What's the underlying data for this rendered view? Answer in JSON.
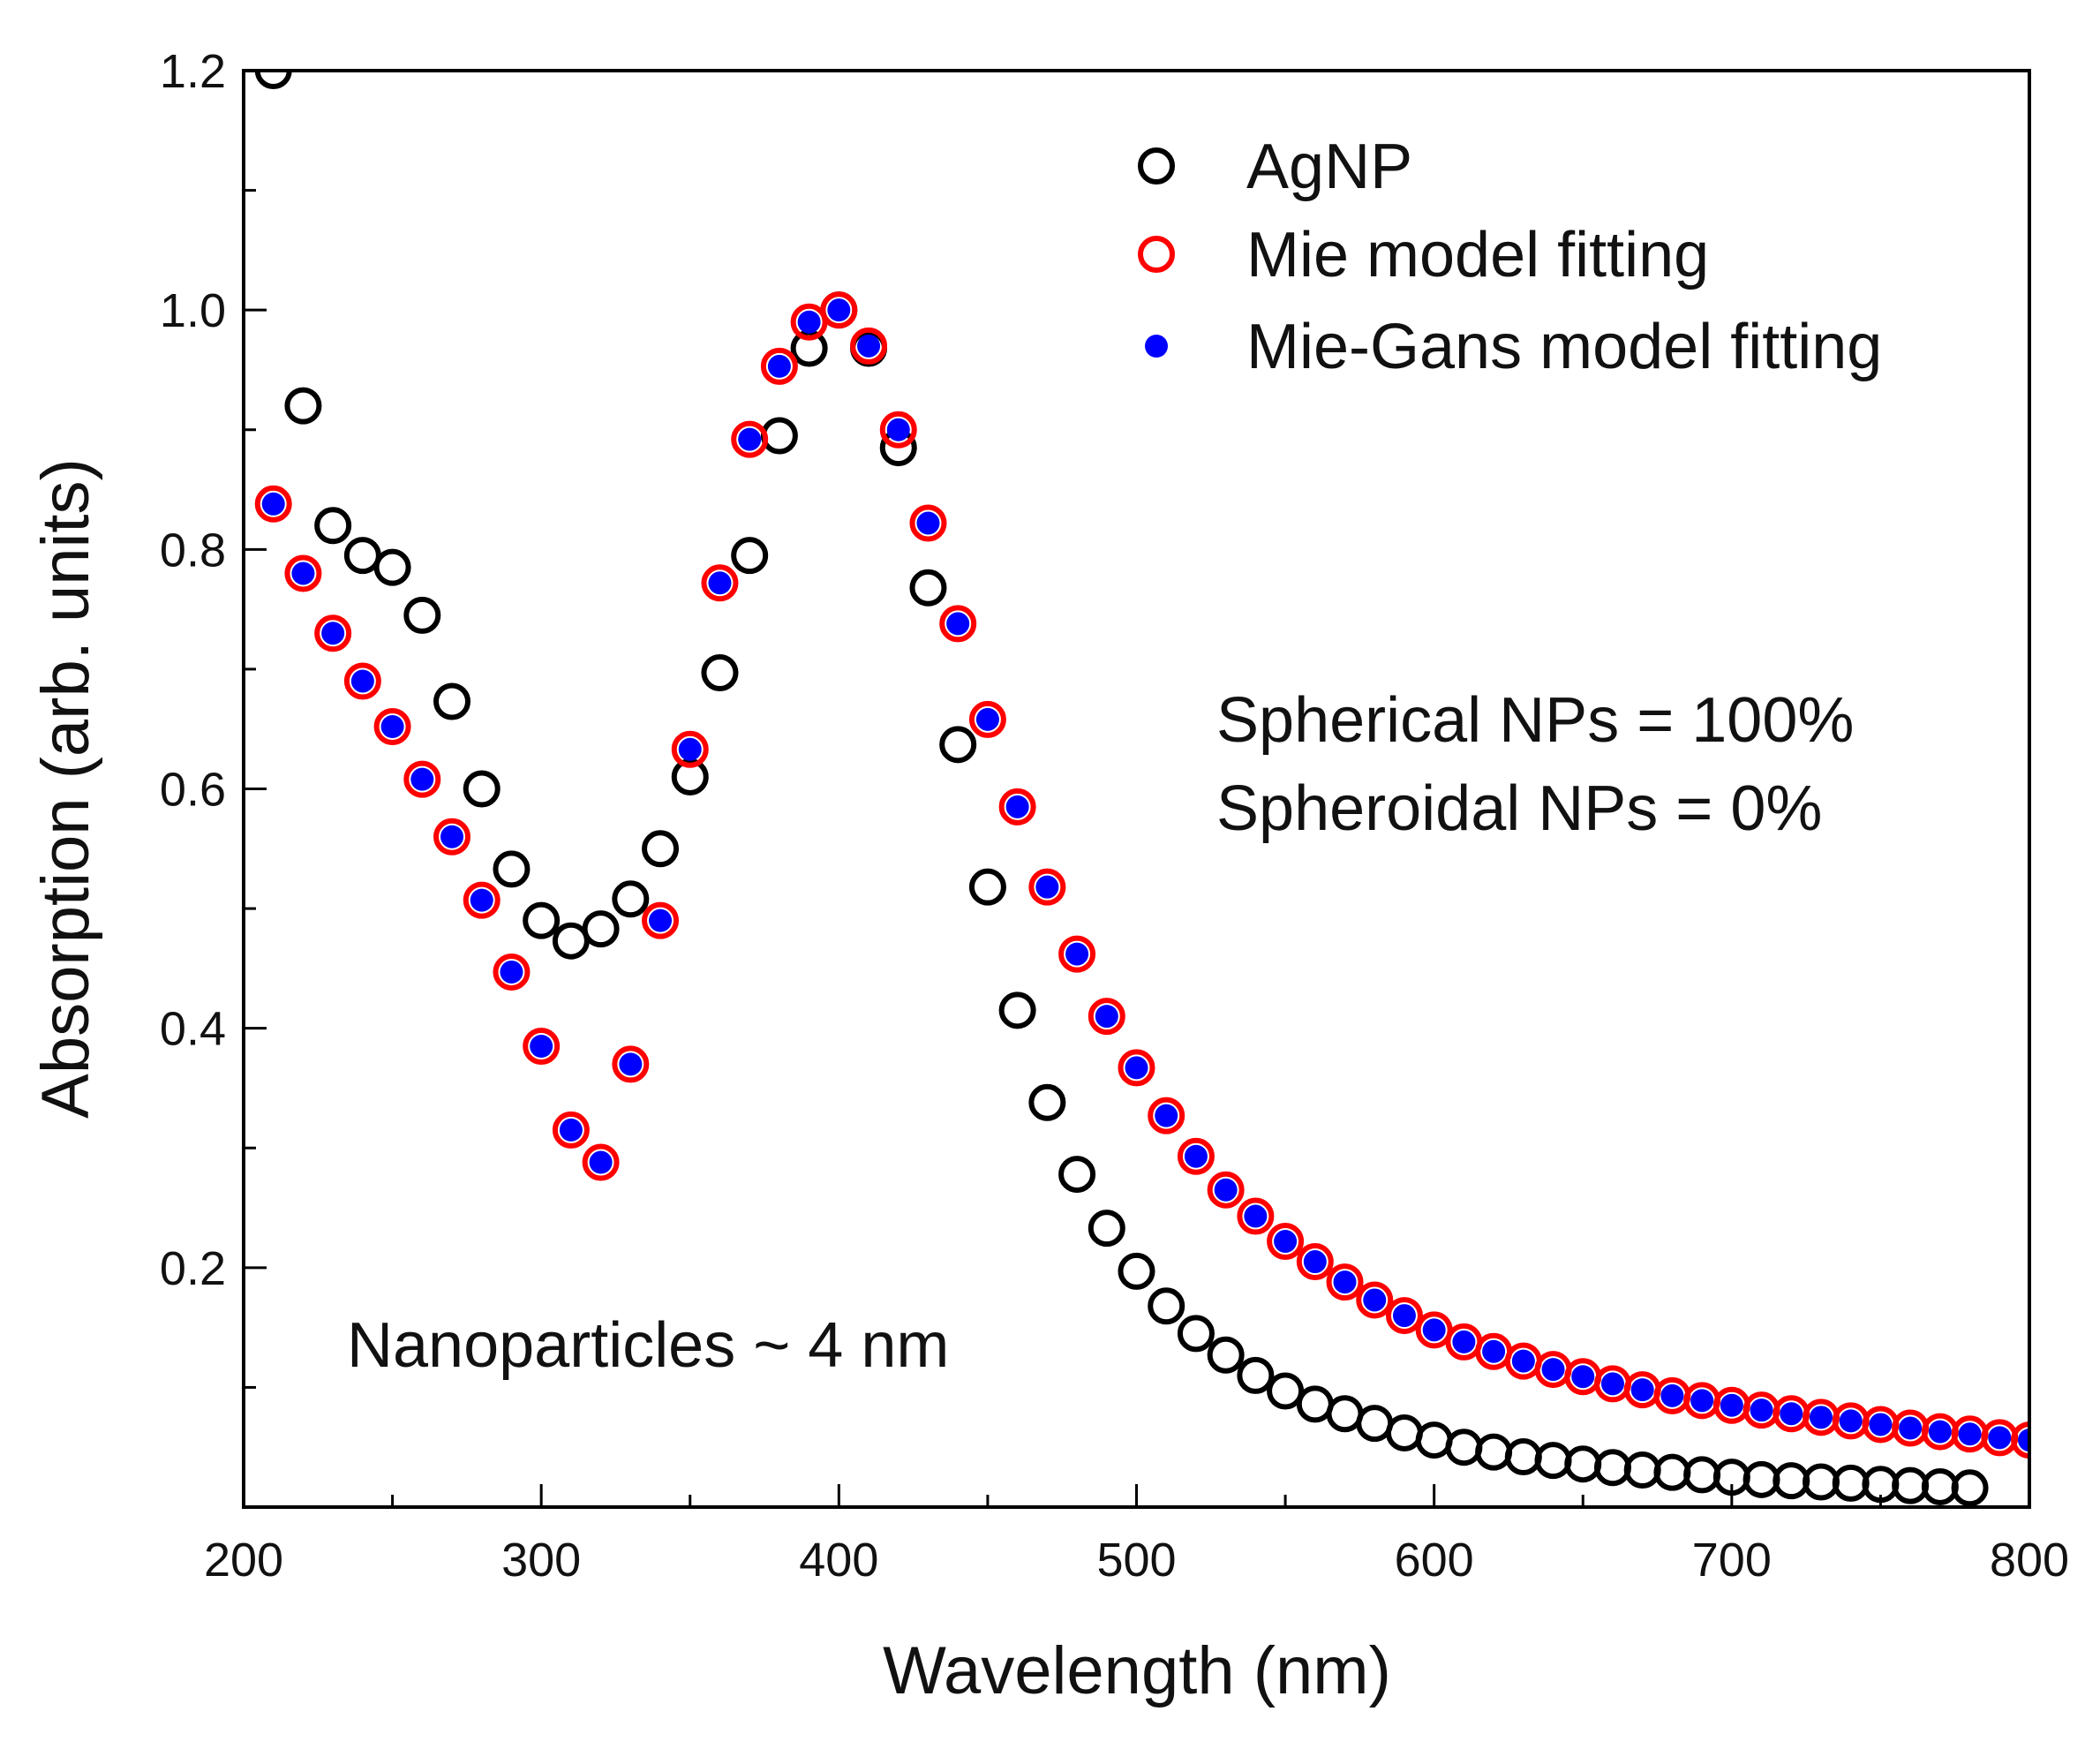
{
  "chart_data": {
    "type": "scatter",
    "title": "",
    "xlabel": "Wavelength (nm)",
    "ylabel": "Absorption (arb. units)",
    "xlim": [
      200,
      800
    ],
    "ylim": [
      0,
      1.2
    ],
    "x_ticks": [
      200,
      300,
      400,
      500,
      600,
      700,
      800
    ],
    "x_tick_labels": [
      "200",
      "300",
      "400",
      "500",
      "600",
      "700",
      "800"
    ],
    "y_ticks": [
      0.2,
      0.4,
      0.6,
      0.8,
      1.0,
      1.2
    ],
    "y_tick_labels": [
      "0.2",
      "0.4",
      "0.6",
      "0.8",
      "1.0",
      "1.2"
    ],
    "grid": false,
    "legend_position": "top-right",
    "series": [
      {
        "name": "AgNP",
        "marker": "open-circle",
        "color": "#000000",
        "x": [
          210,
          220,
          230,
          240,
          250,
          260,
          270,
          280,
          290,
          300,
          310,
          320,
          330,
          340,
          350,
          360,
          370,
          380,
          390,
          400,
          410,
          420,
          430,
          440,
          450,
          460,
          470,
          480,
          490,
          500,
          510,
          520,
          530,
          540,
          550,
          560,
          570,
          580,
          590,
          600,
          610,
          620,
          630,
          640,
          650,
          660,
          670,
          680,
          690,
          700,
          710,
          720,
          730,
          740,
          750,
          760,
          770,
          780
        ],
        "y": [
          1.2,
          0.92,
          0.82,
          0.795,
          0.785,
          0.745,
          0.673,
          0.6,
          0.533,
          0.49,
          0.473,
          0.483,
          0.508,
          0.55,
          0.61,
          0.697,
          0.795,
          0.895,
          0.968,
          1.0,
          0.968,
          0.885,
          0.768,
          0.637,
          0.518,
          0.415,
          0.338,
          0.278,
          0.233,
          0.197,
          0.168,
          0.145,
          0.127,
          0.11,
          0.097,
          0.086,
          0.078,
          0.07,
          0.062,
          0.056,
          0.05,
          0.046,
          0.042,
          0.039,
          0.036,
          0.033,
          0.031,
          0.029,
          0.027,
          0.025,
          0.023,
          0.022,
          0.021,
          0.02,
          0.019,
          0.018,
          0.017,
          0.016
        ]
      },
      {
        "name": "Mie model fitting",
        "marker": "open-circle",
        "color": "#ff0000",
        "x": [
          210,
          220,
          230,
          240,
          250,
          260,
          270,
          280,
          290,
          300,
          310,
          320,
          330,
          340,
          350,
          360,
          370,
          380,
          390,
          400,
          410,
          420,
          430,
          440,
          450,
          460,
          470,
          480,
          490,
          500,
          510,
          520,
          530,
          540,
          550,
          560,
          570,
          580,
          590,
          600,
          610,
          620,
          630,
          640,
          650,
          660,
          670,
          680,
          690,
          700,
          710,
          720,
          730,
          740,
          750,
          760,
          770,
          780,
          790,
          800
        ],
        "y": [
          0.838,
          0.78,
          0.73,
          0.69,
          0.652,
          0.608,
          0.56,
          0.507,
          0.447,
          0.385,
          0.315,
          0.288,
          0.37,
          0.49,
          0.633,
          0.772,
          0.892,
          0.953,
          0.99,
          1.0,
          0.97,
          0.9,
          0.822,
          0.738,
          0.658,
          0.585,
          0.518,
          0.462,
          0.41,
          0.367,
          0.327,
          0.293,
          0.265,
          0.243,
          0.222,
          0.205,
          0.188,
          0.173,
          0.16,
          0.148,
          0.138,
          0.13,
          0.122,
          0.115,
          0.109,
          0.103,
          0.098,
          0.093,
          0.089,
          0.085,
          0.081,
          0.078,
          0.075,
          0.072,
          0.069,
          0.066,
          0.063,
          0.061,
          0.058,
          0.056
        ]
      },
      {
        "name": "Mie-Gans model fitting",
        "marker": "filled-circle",
        "color": "#0000ff",
        "x": [
          210,
          220,
          230,
          240,
          250,
          260,
          270,
          280,
          290,
          300,
          310,
          320,
          330,
          340,
          350,
          360,
          370,
          380,
          390,
          400,
          410,
          420,
          430,
          440,
          450,
          460,
          470,
          480,
          490,
          500,
          510,
          520,
          530,
          540,
          550,
          560,
          570,
          580,
          590,
          600,
          610,
          620,
          630,
          640,
          650,
          660,
          670,
          680,
          690,
          700,
          710,
          720,
          730,
          740,
          750,
          760,
          770,
          780,
          790,
          800
        ],
        "y": [
          0.838,
          0.78,
          0.73,
          0.69,
          0.652,
          0.608,
          0.56,
          0.507,
          0.447,
          0.385,
          0.315,
          0.288,
          0.37,
          0.49,
          0.633,
          0.772,
          0.892,
          0.953,
          0.99,
          1.0,
          0.97,
          0.9,
          0.822,
          0.738,
          0.658,
          0.585,
          0.518,
          0.462,
          0.41,
          0.367,
          0.327,
          0.293,
          0.265,
          0.243,
          0.222,
          0.205,
          0.188,
          0.173,
          0.16,
          0.148,
          0.138,
          0.13,
          0.122,
          0.115,
          0.109,
          0.103,
          0.098,
          0.093,
          0.089,
          0.085,
          0.081,
          0.078,
          0.075,
          0.072,
          0.069,
          0.066,
          0.063,
          0.061,
          0.058,
          0.056
        ]
      }
    ],
    "annotations": [
      "Spherical NPs = 100%",
      "Spheroidal NPs = 0%",
      "Nanoparticles ~ 4 nm"
    ]
  }
}
